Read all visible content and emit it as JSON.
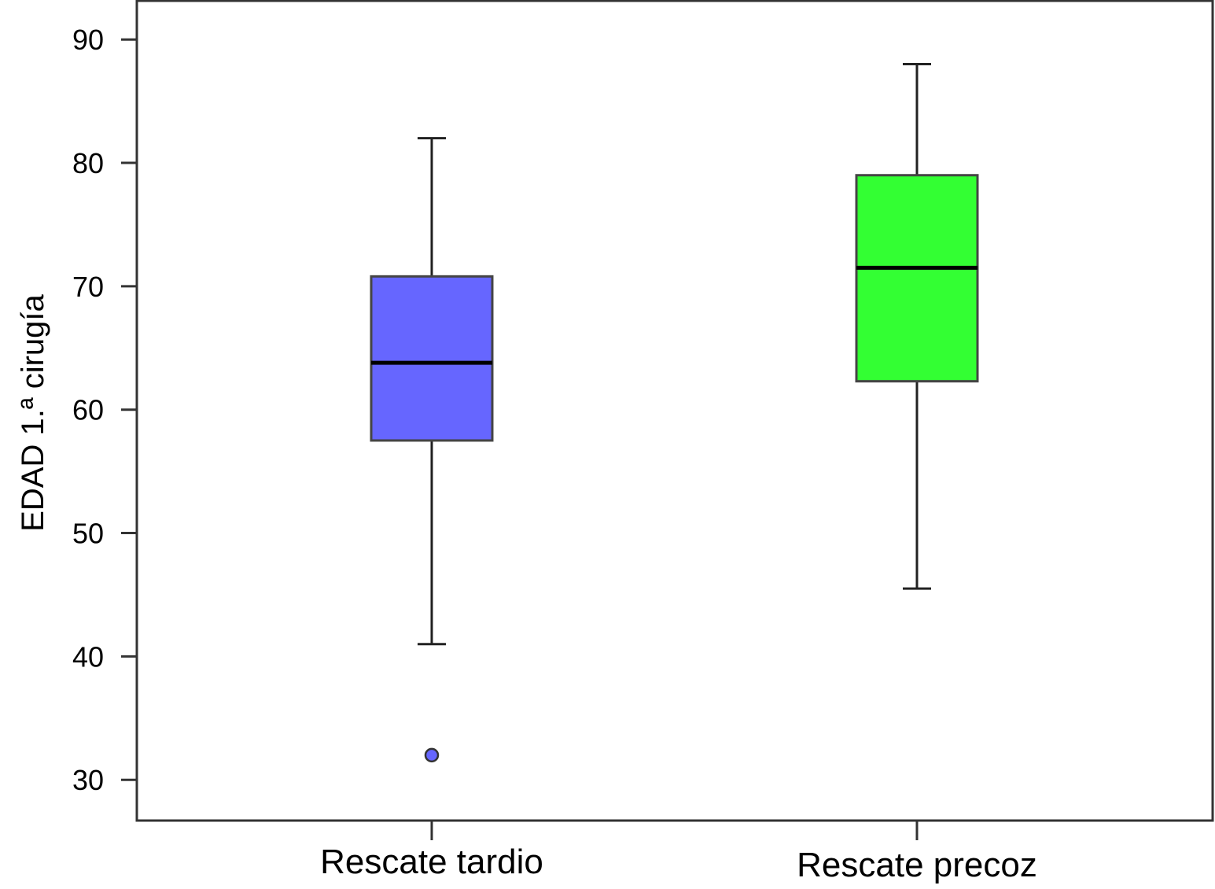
{
  "chart_data": {
    "type": "box",
    "title": "",
    "xlabel": "",
    "ylabel": "EDAD 1.ª cirugía",
    "ylim": [
      26.7,
      93.2
    ],
    "yticks": [
      30,
      40,
      50,
      60,
      70,
      80,
      90
    ],
    "grid": false,
    "legend": "none",
    "categories": [
      "Rescate tardio",
      "Rescate precoz"
    ],
    "series": [
      {
        "category": "Rescate tardio",
        "whisker_low": 41,
        "q1": 57.5,
        "median": 63.8,
        "q3": 70.8,
        "whisker_high": 82,
        "outliers": [
          32
        ],
        "color": "#6666ff"
      },
      {
        "category": "Rescate precoz",
        "whisker_low": 45.5,
        "q1": 62.3,
        "median": 71.5,
        "q3": 79,
        "whisker_high": 88,
        "outliers": [],
        "color": "#33ff33"
      }
    ]
  }
}
